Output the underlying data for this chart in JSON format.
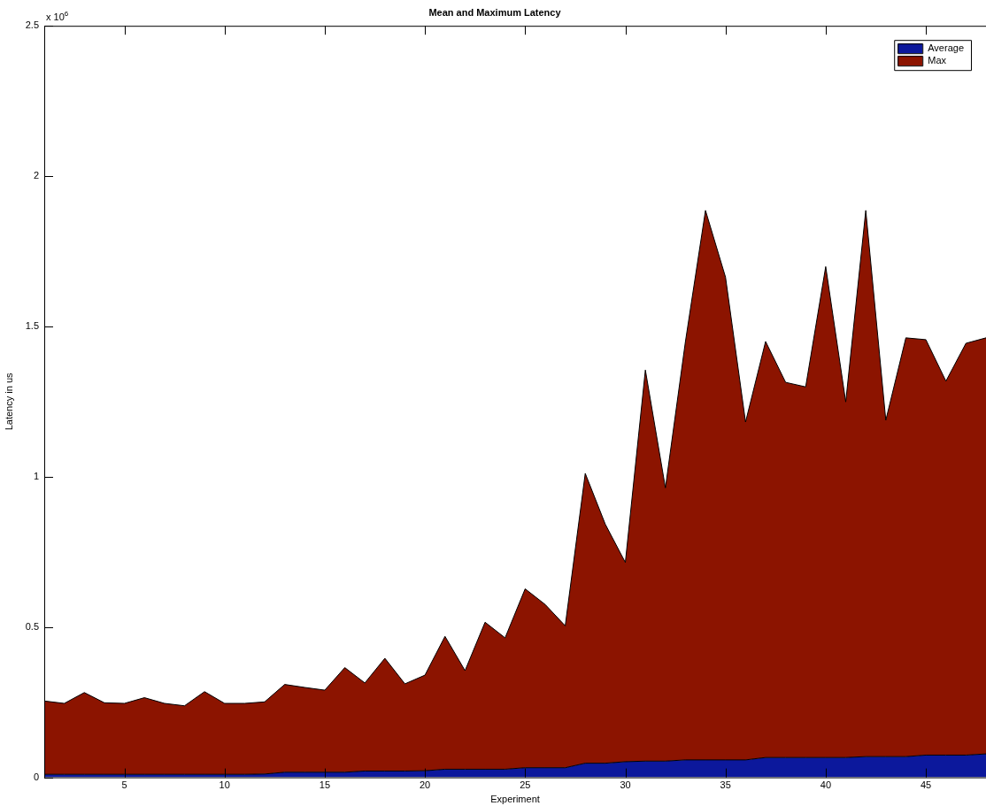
{
  "chart_data": {
    "type": "area",
    "title": "Mean and Maximum Latency",
    "xlabel": "Experiment",
    "ylabel": "Latency in us",
    "annotations": [
      "x 10$^{6}$"
    ],
    "x": [
      1,
      2,
      3,
      4,
      5,
      6,
      7,
      8,
      9,
      10,
      11,
      12,
      13,
      14,
      15,
      16,
      17,
      18,
      19,
      20,
      21,
      22,
      23,
      24,
      25,
      26,
      27,
      28,
      29,
      30,
      31,
      32,
      33,
      34,
      35,
      36,
      37,
      38,
      39,
      40,
      41,
      42,
      43,
      44,
      45,
      46,
      47,
      48
    ],
    "stacked": true,
    "series": [
      {
        "name": "Average",
        "color": "#0c189c",
        "values": [
          0.01,
          0.01,
          0.01,
          0.01,
          0.01,
          0.01,
          0.01,
          0.01,
          0.01,
          0.01,
          0.01,
          0.011,
          0.017,
          0.017,
          0.017,
          0.017,
          0.021,
          0.021,
          0.021,
          0.022,
          0.027,
          0.027,
          0.027,
          0.027,
          0.032,
          0.032,
          0.032,
          0.047,
          0.047,
          0.052,
          0.054,
          0.054,
          0.058,
          0.058,
          0.058,
          0.058,
          0.066,
          0.066,
          0.066,
          0.066,
          0.066,
          0.069,
          0.069,
          0.069,
          0.074,
          0.074,
          0.074,
          0.078
        ]
      },
      {
        "name": "Max",
        "color": "#8c1400",
        "values": [
          0.244,
          0.236,
          0.272,
          0.238,
          0.236,
          0.255,
          0.236,
          0.228,
          0.275,
          0.236,
          0.236,
          0.24,
          0.292,
          0.282,
          0.273,
          0.348,
          0.293,
          0.375,
          0.29,
          0.318,
          0.442,
          0.328,
          0.489,
          0.437,
          0.595,
          0.543,
          0.472,
          0.964,
          0.795,
          0.663,
          1.301,
          0.909,
          1.392,
          1.828,
          1.606,
          1.124,
          1.384,
          1.248,
          1.233,
          1.633,
          1.183,
          1.817,
          1.119,
          1.393,
          1.382,
          1.244,
          1.37,
          1.384
        ]
      }
    ],
    "xlim": [
      1,
      48
    ],
    "xticks": [
      5,
      10,
      15,
      20,
      25,
      30,
      35,
      40,
      45
    ],
    "ylim": [
      0,
      2.5
    ],
    "yticks": [
      0,
      0.5,
      1,
      1.5,
      2,
      2.5
    ],
    "legend": "top right",
    "grid": false
  }
}
